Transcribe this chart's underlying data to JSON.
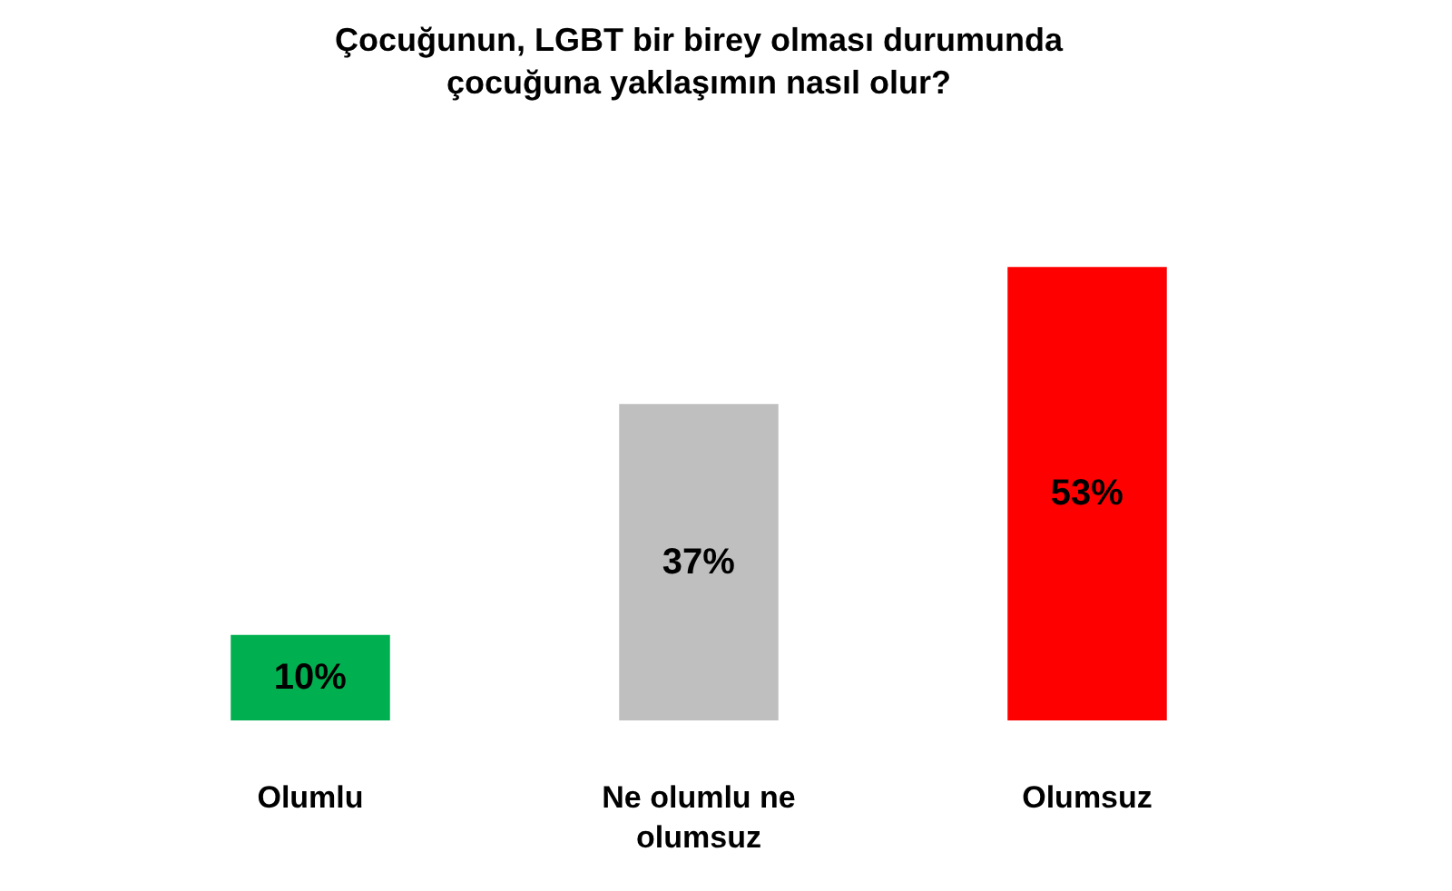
{
  "chart_data": {
    "type": "bar",
    "title": "Çocuğunun, LGBT bir birey olması durumunda çocuğuna yaklaşımın nasıl olur?",
    "categories": [
      "Olumlu",
      "Ne olumlu ne olumsuz",
      "Olumsuz"
    ],
    "values": [
      10,
      37,
      53
    ],
    "colors": [
      "#00b050",
      "#bfbfbf",
      "#ff0000"
    ],
    "value_labels": [
      "10%",
      "37%",
      "53%"
    ]
  }
}
